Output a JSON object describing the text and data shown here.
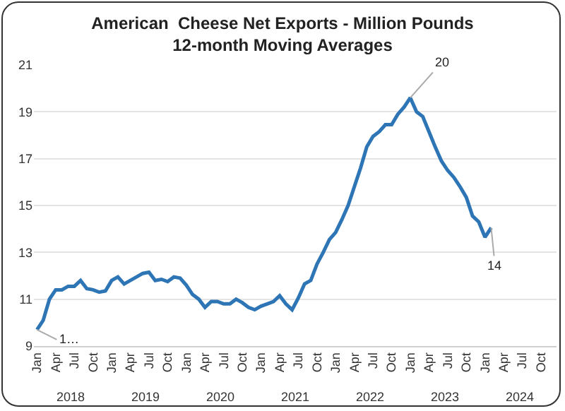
{
  "chart_data": {
    "type": "line",
    "title": "American  Cheese Net Exports - Million Pounds\n12-month Moving Averages",
    "categories": [
      "Jan",
      null,
      null,
      "Apr",
      null,
      null,
      "Jul",
      null,
      null,
      "Oct",
      null,
      null,
      "Jan",
      null,
      null,
      "Apr",
      null,
      null,
      "Jul",
      null,
      null,
      "Oct",
      null,
      null,
      "Jan",
      null,
      null,
      "Apr",
      null,
      null,
      "Jul",
      null,
      null,
      "Oct",
      null,
      null,
      "Jan",
      null,
      null,
      "Apr",
      null,
      null,
      "Jul",
      null,
      null,
      "Oct",
      null,
      null,
      "Jan",
      null,
      null,
      "Apr",
      null,
      null,
      "Jul",
      null,
      null,
      "Oct",
      null,
      null,
      "Jan",
      null,
      null,
      "Apr",
      null,
      null,
      "Jul",
      null,
      null,
      "Oct",
      null,
      null,
      "Jan",
      null,
      null,
      "Apr",
      null,
      null,
      "Jul",
      null,
      null,
      "Oct",
      null,
      null
    ],
    "series": [
      {
        "color": "#2e75b6",
        "values": [
          9.7,
          10.1,
          11.0,
          11.4,
          11.4,
          11.55,
          11.55,
          11.8,
          11.45,
          11.4,
          11.3,
          11.35,
          11.8,
          11.95,
          11.65,
          11.8,
          11.95,
          12.1,
          12.15,
          11.8,
          11.85,
          11.75,
          11.95,
          11.9,
          11.6,
          11.2,
          11.0,
          10.65,
          10.9,
          10.9,
          10.8,
          10.8,
          11.0,
          10.85,
          10.65,
          10.55,
          10.7,
          10.8,
          10.9,
          11.15,
          10.8,
          10.55,
          11.05,
          11.65,
          11.8,
          12.5,
          13.0,
          13.55,
          13.85,
          14.4,
          15.0,
          15.8,
          16.6,
          17.5,
          17.95,
          18.15,
          18.45,
          18.45,
          18.9,
          19.2,
          19.6,
          19.0,
          18.8,
          18.15,
          17.5,
          16.9,
          16.5,
          16.2,
          15.8,
          15.35,
          14.55,
          14.3,
          13.65,
          14.05,
          null,
          null,
          null,
          null,
          null,
          null,
          null,
          null,
          null,
          null
        ],
        "value_labels": [
          "1…",
          null,
          null,
          null,
          null,
          null,
          null,
          null,
          null,
          null,
          null,
          null,
          null,
          null,
          null,
          null,
          null,
          null,
          null,
          null,
          null,
          null,
          null,
          null,
          null,
          null,
          null,
          null,
          null,
          null,
          null,
          null,
          null,
          null,
          null,
          null,
          null,
          null,
          null,
          null,
          null,
          null,
          null,
          null,
          null,
          null,
          null,
          null,
          null,
          null,
          null,
          null,
          null,
          null,
          null,
          null,
          null,
          null,
          null,
          null,
          "20",
          null,
          null,
          null,
          null,
          null,
          null,
          null,
          null,
          null,
          null,
          null,
          null,
          "14",
          null,
          null,
          null,
          null,
          null,
          null,
          null,
          null,
          null,
          null
        ]
      }
    ],
    "ylim": [
      9,
      21
    ],
    "yticks": [
      9,
      11,
      13,
      15,
      17,
      19,
      21
    ],
    "grid": "y",
    "annotations": [
      "2018",
      "2019",
      "2020",
      "2021",
      "2022",
      "2023",
      "2024"
    ]
  }
}
